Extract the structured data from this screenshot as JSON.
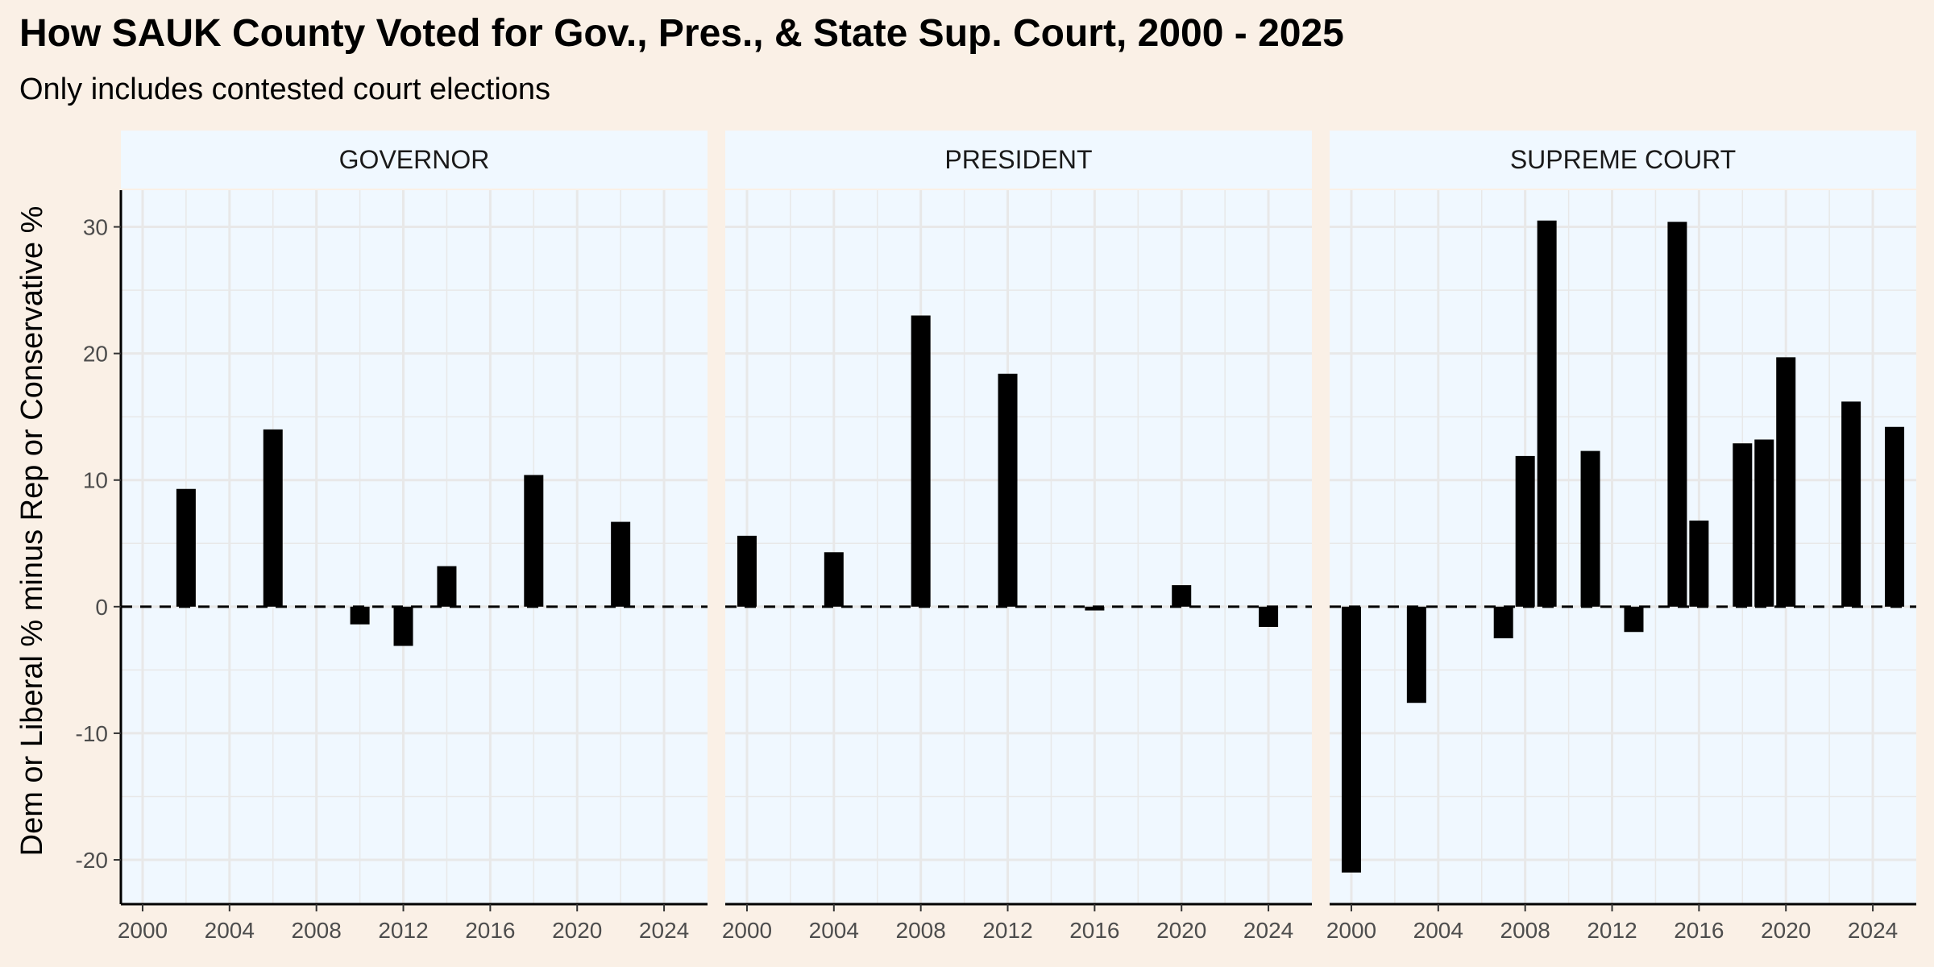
{
  "title": "How SAUK County Voted for Gov., Pres., & State Sup. Court, 2000 - 2025",
  "subtitle": "Only includes contested court elections",
  "colors": {
    "background": "#faf0e6",
    "panel": "#f0f8ff",
    "grid": "#e8e8e8",
    "bar": "#000000"
  },
  "chart_data": {
    "type": "bar",
    "ylabel": "Dem or Liberal % minus Rep or Conservative %",
    "xlabel": "",
    "xlim": [
      1999,
      2026
    ],
    "ylim": [
      -23.5,
      32.9
    ],
    "x_ticks": [
      2000,
      2004,
      2008,
      2012,
      2016,
      2020,
      2024
    ],
    "y_ticks": [
      -20,
      -10,
      0,
      10,
      20,
      30
    ],
    "reference_line": {
      "y": 0,
      "style": "dashed"
    },
    "panels": [
      {
        "name": "GOVERNOR",
        "bars": [
          {
            "x": 2002,
            "value": 9.3
          },
          {
            "x": 2006,
            "value": 14.0
          },
          {
            "x": 2010,
            "value": -1.4
          },
          {
            "x": 2012,
            "value": -3.1
          },
          {
            "x": 2014,
            "value": 3.2
          },
          {
            "x": 2018,
            "value": 10.4
          },
          {
            "x": 2022,
            "value": 6.7
          }
        ]
      },
      {
        "name": "PRESIDENT",
        "bars": [
          {
            "x": 2000,
            "value": 5.6
          },
          {
            "x": 2004,
            "value": 4.3
          },
          {
            "x": 2008,
            "value": 23.0
          },
          {
            "x": 2012,
            "value": 18.4
          },
          {
            "x": 2016,
            "value": -0.3
          },
          {
            "x": 2020,
            "value": 1.7
          },
          {
            "x": 2024,
            "value": -1.6
          }
        ]
      },
      {
        "name": "SUPREME COURT",
        "bars": [
          {
            "x": 2000,
            "value": -21.0
          },
          {
            "x": 2003,
            "value": -7.6
          },
          {
            "x": 2007,
            "value": -2.5
          },
          {
            "x": 2008,
            "value": 11.9
          },
          {
            "x": 2009,
            "value": 30.5
          },
          {
            "x": 2011,
            "value": 12.3
          },
          {
            "x": 2013,
            "value": -2.0
          },
          {
            "x": 2015,
            "value": 30.4
          },
          {
            "x": 2016,
            "value": 6.8
          },
          {
            "x": 2018,
            "value": 12.9
          },
          {
            "x": 2019,
            "value": 13.2
          },
          {
            "x": 2020,
            "value": 19.7
          },
          {
            "x": 2023,
            "value": 16.2
          },
          {
            "x": 2025,
            "value": 14.2
          }
        ]
      }
    ]
  }
}
